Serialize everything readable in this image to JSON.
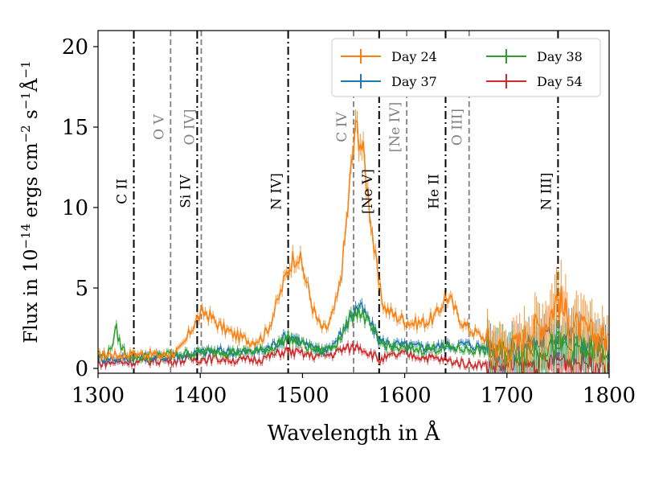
{
  "chart_data": {
    "type": "line",
    "xlabel": "Wavelength in Å",
    "ylabel": "Flux in 10^-14 ergs cm^-2 s^-1 Å^-1",
    "ylabel_parts": {
      "prefix": "Flux in 10",
      "exp1": "−14",
      "mid1": " ergs cm",
      "exp2": "−2",
      "mid2": " s",
      "exp3": "−1",
      "mid3": "Å",
      "exp4": "−1"
    },
    "xlim": [
      1300,
      1800
    ],
    "ylim": [
      -0.3,
      21
    ],
    "xticks": [
      1300,
      1400,
      1500,
      1600,
      1700,
      1800
    ],
    "yticks": [
      0,
      5,
      10,
      15,
      20
    ],
    "legend_position": "top-right",
    "series": [
      {
        "name": "Day 24",
        "color": "#ff7f0e",
        "points": [
          [
            1300,
            0.8
          ],
          [
            1310,
            0.9
          ],
          [
            1320,
            0.8
          ],
          [
            1330,
            0.9
          ],
          [
            1340,
            0.9
          ],
          [
            1350,
            0.9
          ],
          [
            1360,
            0.8
          ],
          [
            1370,
            0.9
          ],
          [
            1380,
            1.1
          ],
          [
            1385,
            1.6
          ],
          [
            1390,
            2.3
          ],
          [
            1395,
            2.9
          ],
          [
            1400,
            3.3
          ],
          [
            1405,
            3.5
          ],
          [
            1410,
            3.2
          ],
          [
            1420,
            2.6
          ],
          [
            1430,
            2.2
          ],
          [
            1440,
            1.9
          ],
          [
            1450,
            1.7
          ],
          [
            1460,
            1.9
          ],
          [
            1465,
            2.3
          ],
          [
            1470,
            3.1
          ],
          [
            1475,
            4.0
          ],
          [
            1480,
            5.0
          ],
          [
            1485,
            6.0
          ],
          [
            1490,
            6.8
          ],
          [
            1495,
            7.1
          ],
          [
            1500,
            6.3
          ],
          [
            1505,
            5.1
          ],
          [
            1510,
            3.8
          ],
          [
            1515,
            2.9
          ],
          [
            1520,
            2.4
          ],
          [
            1525,
            2.6
          ],
          [
            1530,
            3.4
          ],
          [
            1535,
            4.6
          ],
          [
            1540,
            7.0
          ],
          [
            1545,
            10.5
          ],
          [
            1550,
            14.0
          ],
          [
            1553,
            15.0
          ],
          [
            1556,
            14.5
          ],
          [
            1560,
            13.0
          ],
          [
            1565,
            10.5
          ],
          [
            1570,
            7.5
          ],
          [
            1575,
            5.0
          ],
          [
            1580,
            3.8
          ],
          [
            1590,
            3.3
          ],
          [
            1600,
            3.0
          ],
          [
            1610,
            2.8
          ],
          [
            1620,
            2.9
          ],
          [
            1630,
            3.2
          ],
          [
            1635,
            3.8
          ],
          [
            1640,
            4.5
          ],
          [
            1645,
            4.2
          ],
          [
            1650,
            3.5
          ],
          [
            1660,
            2.6
          ],
          [
            1670,
            2.2
          ],
          [
            1680,
            1.8
          ],
          [
            1690,
            1.4
          ],
          [
            1700,
            1.2
          ],
          [
            1710,
            1.5
          ],
          [
            1720,
            2.2
          ],
          [
            1730,
            2.6
          ],
          [
            1740,
            3.0
          ],
          [
            1745,
            3.8
          ],
          [
            1750,
            4.5
          ],
          [
            1755,
            3.6
          ],
          [
            1760,
            3.0
          ],
          [
            1770,
            2.5
          ],
          [
            1780,
            2.2
          ],
          [
            1790,
            2.0
          ],
          [
            1800,
            1.8
          ]
        ]
      },
      {
        "name": "Day 37",
        "color": "#1f77b4",
        "points": [
          [
            1300,
            0.6
          ],
          [
            1320,
            0.6
          ],
          [
            1340,
            0.7
          ],
          [
            1360,
            0.7
          ],
          [
            1380,
            0.8
          ],
          [
            1400,
            1.0
          ],
          [
            1420,
            1.1
          ],
          [
            1440,
            1.0
          ],
          [
            1460,
            1.1
          ],
          [
            1470,
            1.4
          ],
          [
            1480,
            1.8
          ],
          [
            1485,
            2.1
          ],
          [
            1490,
            2.0
          ],
          [
            1500,
            1.6
          ],
          [
            1510,
            1.2
          ],
          [
            1520,
            1.1
          ],
          [
            1530,
            1.5
          ],
          [
            1540,
            2.3
          ],
          [
            1545,
            3.0
          ],
          [
            1550,
            3.6
          ],
          [
            1555,
            3.9
          ],
          [
            1560,
            3.5
          ],
          [
            1570,
            2.4
          ],
          [
            1575,
            1.7
          ],
          [
            1590,
            1.5
          ],
          [
            1600,
            1.4
          ],
          [
            1620,
            1.3
          ],
          [
            1640,
            1.4
          ],
          [
            1660,
            1.5
          ],
          [
            1680,
            1.3
          ],
          [
            1700,
            1.0
          ],
          [
            1720,
            1.3
          ],
          [
            1740,
            1.9
          ],
          [
            1750,
            2.2
          ],
          [
            1760,
            2.0
          ],
          [
            1780,
            1.4
          ],
          [
            1800,
            1.2
          ]
        ]
      },
      {
        "name": "Day 38",
        "color": "#2ca02c",
        "points": [
          [
            1300,
            0.7
          ],
          [
            1310,
            0.9
          ],
          [
            1315,
            1.8
          ],
          [
            1318,
            2.4
          ],
          [
            1322,
            1.4
          ],
          [
            1330,
            0.8
          ],
          [
            1340,
            0.7
          ],
          [
            1360,
            0.8
          ],
          [
            1380,
            0.9
          ],
          [
            1400,
            1.0
          ],
          [
            1420,
            1.1
          ],
          [
            1440,
            1.0
          ],
          [
            1460,
            1.1
          ],
          [
            1470,
            1.3
          ],
          [
            1480,
            1.7
          ],
          [
            1485,
            1.9
          ],
          [
            1490,
            1.8
          ],
          [
            1500,
            1.5
          ],
          [
            1510,
            1.2
          ],
          [
            1520,
            1.1
          ],
          [
            1530,
            1.4
          ],
          [
            1540,
            2.2
          ],
          [
            1545,
            2.9
          ],
          [
            1550,
            3.4
          ],
          [
            1555,
            3.6
          ],
          [
            1560,
            3.2
          ],
          [
            1570,
            2.2
          ],
          [
            1575,
            1.6
          ],
          [
            1590,
            1.3
          ],
          [
            1600,
            1.2
          ],
          [
            1620,
            1.2
          ],
          [
            1640,
            1.3
          ],
          [
            1660,
            1.2
          ],
          [
            1680,
            1.1
          ],
          [
            1700,
            1.0
          ],
          [
            1720,
            1.1
          ],
          [
            1740,
            1.4
          ],
          [
            1750,
            1.5
          ],
          [
            1760,
            1.3
          ],
          [
            1780,
            1.1
          ],
          [
            1800,
            1.0
          ]
        ]
      },
      {
        "name": "Day 54",
        "color": "#d62728",
        "points": [
          [
            1300,
            0.3
          ],
          [
            1320,
            0.4
          ],
          [
            1340,
            0.4
          ],
          [
            1360,
            0.5
          ],
          [
            1380,
            0.5
          ],
          [
            1400,
            0.6
          ],
          [
            1420,
            0.6
          ],
          [
            1440,
            0.5
          ],
          [
            1460,
            0.6
          ],
          [
            1470,
            0.8
          ],
          [
            1480,
            1.0
          ],
          [
            1485,
            1.1
          ],
          [
            1490,
            1.0
          ],
          [
            1500,
            0.9
          ],
          [
            1510,
            0.8
          ],
          [
            1520,
            0.8
          ],
          [
            1530,
            0.9
          ],
          [
            1540,
            1.2
          ],
          [
            1550,
            1.3
          ],
          [
            1555,
            1.4
          ],
          [
            1560,
            1.2
          ],
          [
            1570,
            0.8
          ],
          [
            1575,
            0.5
          ],
          [
            1590,
            0.8
          ],
          [
            1600,
            0.9
          ],
          [
            1620,
            0.7
          ],
          [
            1640,
            0.5
          ],
          [
            1660,
            0.3
          ],
          [
            1680,
            0.2
          ],
          [
            1700,
            0.1
          ],
          [
            1720,
            0.2
          ],
          [
            1740,
            0.4
          ],
          [
            1750,
            0.6
          ],
          [
            1760,
            0.5
          ],
          [
            1780,
            0.4
          ],
          [
            1800,
            0.2
          ]
        ]
      }
    ],
    "lines": [
      {
        "wavelength": 1335,
        "label": "C II",
        "style": "dashdot",
        "color": "#000000",
        "label_y": 11
      },
      {
        "wavelength": 1371,
        "label": "O V",
        "style": "dashed",
        "color": "#808080",
        "label_y": 15
      },
      {
        "wavelength": 1397,
        "label": "Si IV",
        "style": "dashdot",
        "color": "#000000",
        "label_y": 11
      },
      {
        "wavelength": 1401,
        "label": "O IV]",
        "style": "dashed",
        "color": "#808080",
        "label_y": 15
      },
      {
        "wavelength": 1486,
        "label": "N IV]",
        "style": "dashdot",
        "color": "#000000",
        "label_y": 11
      },
      {
        "wavelength": 1550,
        "label": "C IV",
        "style": "dashed",
        "color": "#808080",
        "label_y": 15
      },
      {
        "wavelength": 1575,
        "label": "[Ne V]",
        "style": "dashdot",
        "color": "#000000",
        "label_y": 11
      },
      {
        "wavelength": 1602,
        "label": "[Ne IV]",
        "style": "dashed",
        "color": "#808080",
        "label_y": 15
      },
      {
        "wavelength": 1640,
        "label": "He II",
        "style": "dashdot",
        "color": "#000000",
        "label_y": 11
      },
      {
        "wavelength": 1663,
        "label": "O III]",
        "style": "dashed",
        "color": "#808080",
        "label_y": 15
      },
      {
        "wavelength": 1750,
        "label": "N III]",
        "style": "dashdot",
        "color": "#000000",
        "label_y": 11
      }
    ]
  }
}
